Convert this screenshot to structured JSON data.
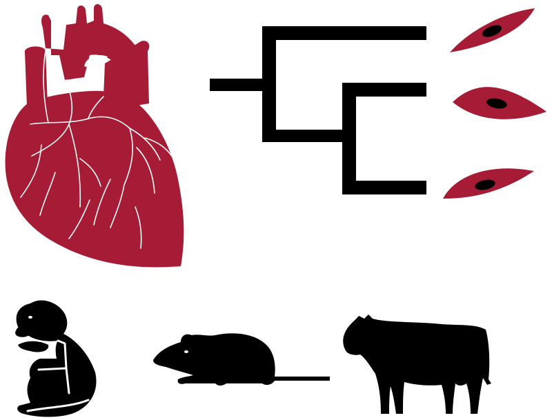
{
  "colors": {
    "heart": "#A61C36",
    "cell": "#A61C36",
    "tree": "#000000",
    "animal": "#000000",
    "nucleus": "#000000",
    "vessel_line": "#ffffff",
    "background": "#ffffff"
  },
  "icons": {
    "heart": "heart-icon",
    "tree": "phylogenetic-tree-icon",
    "cells": [
      "cardiomyocyte-icon",
      "cardiomyocyte-icon",
      "cardiomyocyte-icon"
    ],
    "animals": [
      "monkey-icon",
      "mouse-icon",
      "cow-icon"
    ]
  }
}
